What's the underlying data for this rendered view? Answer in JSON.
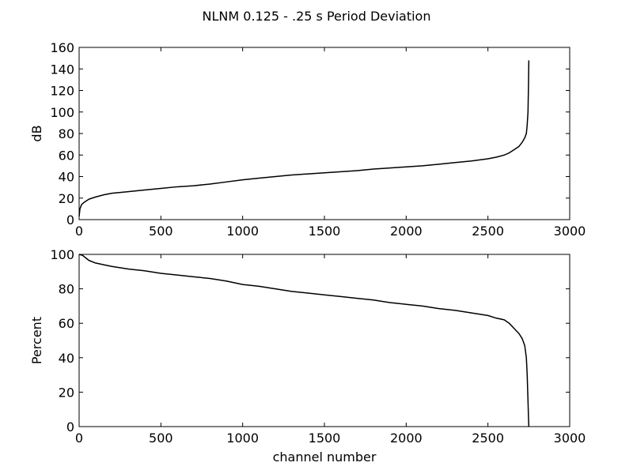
{
  "title": "NLNM 0.125 - .25 s Period Deviation",
  "chart_data": [
    {
      "type": "line",
      "xlabel": "",
      "ylabel": "dB",
      "xlim": [
        0,
        3000
      ],
      "ylim": [
        0,
        160
      ],
      "x_ticks": [
        0,
        500,
        1000,
        1500,
        2000,
        2500,
        3000
      ],
      "y_ticks": [
        0,
        20,
        40,
        60,
        80,
        100,
        120,
        140,
        160
      ],
      "grid": false,
      "series": [
        {
          "x": [
            0,
            5,
            15,
            30,
            60,
            100,
            150,
            200,
            300,
            400,
            500,
            600,
            700,
            800,
            900,
            1000,
            1100,
            1200,
            1300,
            1400,
            1500,
            1600,
            1700,
            1800,
            1900,
            2000,
            2100,
            2200,
            2300,
            2400,
            2500,
            2550,
            2600,
            2630,
            2660,
            2690,
            2710,
            2725,
            2735,
            2740,
            2745,
            2748,
            2750
          ],
          "values": [
            3,
            10,
            14,
            16,
            19,
            21,
            23,
            24.5,
            26,
            27.5,
            29,
            30.5,
            31.5,
            33,
            35,
            37,
            38.5,
            40,
            41.5,
            42.5,
            43.5,
            44.5,
            45.5,
            47,
            48,
            49,
            50,
            51.5,
            53,
            54.5,
            56.5,
            58,
            60,
            62,
            65,
            68,
            72,
            76,
            80,
            88,
            100,
            125,
            148
          ]
        }
      ]
    },
    {
      "type": "line",
      "xlabel": "channel number",
      "ylabel": "Percent",
      "xlim": [
        0,
        3000
      ],
      "ylim": [
        0,
        100
      ],
      "x_ticks": [
        0,
        500,
        1000,
        1500,
        2000,
        2500,
        3000
      ],
      "y_ticks": [
        0,
        20,
        40,
        60,
        80,
        100
      ],
      "grid": false,
      "series": [
        {
          "x": [
            0,
            20,
            40,
            60,
            100,
            150,
            200,
            300,
            400,
            500,
            600,
            700,
            800,
            900,
            1000,
            1100,
            1200,
            1300,
            1400,
            1500,
            1600,
            1700,
            1800,
            1900,
            2000,
            2100,
            2200,
            2300,
            2400,
            2500,
            2550,
            2600,
            2630,
            2660,
            2690,
            2710,
            2725,
            2735,
            2740,
            2745,
            2748,
            2750
          ],
          "values": [
            100,
            99.5,
            98,
            96.5,
            95,
            94,
            93,
            91.5,
            90.5,
            89,
            88,
            87,
            86,
            84.5,
            82.5,
            81.5,
            80,
            78.5,
            77.5,
            76.5,
            75.5,
            74.5,
            73.5,
            72,
            71,
            70,
            68.5,
            67.5,
            66,
            64.5,
            63,
            62,
            60,
            57,
            54,
            51,
            47,
            40,
            30,
            15,
            5,
            0
          ]
        }
      ]
    }
  ]
}
